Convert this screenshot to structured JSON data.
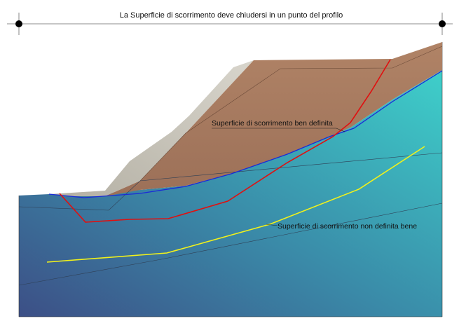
{
  "title": "La Superficie di scorrimento deve chiudersi in un punto del profilo",
  "labels": {
    "well_defined": "Superficie di scorrimento ben definita",
    "not_well_defined": "Superficie di scorrimento non definita bene"
  },
  "colors": {
    "water_top": "#3ecfca",
    "water_bottom": "#3c5a90",
    "soil": "#a87a5c",
    "soil_top": "#b48a6a",
    "rock_face": "#c9c5bb",
    "well_defined_surface": "#e01010",
    "not_well_defined_surface": "#f2f21a",
    "boundary_line": "#1a2ad8",
    "frame": "#555555"
  },
  "icons": [
    "frame-corner-marker-icon",
    "frame-corner-marker-icon"
  ]
}
